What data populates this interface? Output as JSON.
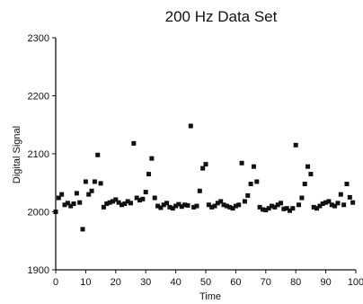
{
  "chart_data": {
    "type": "scatter",
    "title": "200 Hz Data Set",
    "xlabel": "Time",
    "ylabel": "Digital Signal",
    "xlim": [
      0,
      100
    ],
    "ylim": [
      1900,
      2300
    ],
    "xticks": [
      0,
      10,
      20,
      30,
      40,
      50,
      60,
      70,
      80,
      90,
      100
    ],
    "xtick_labels": [
      "0",
      "10",
      "20",
      "30",
      "40",
      "50",
      "60",
      "70",
      "80",
      "90",
      "100"
    ],
    "yticks": [
      1900,
      2000,
      2100,
      2200,
      2300
    ],
    "ytick_labels": [
      "1900",
      "2000",
      "2100",
      "2200",
      "2300"
    ],
    "grid": false,
    "legend": "none",
    "marker_color": "#111111",
    "x": [
      0,
      1,
      2,
      3,
      4,
      5,
      6,
      7,
      8,
      9,
      10,
      11,
      12,
      13,
      14,
      15,
      16,
      17,
      18,
      19,
      20,
      21,
      22,
      23,
      24,
      25,
      26,
      27,
      28,
      29,
      30,
      31,
      32,
      33,
      34,
      35,
      36,
      37,
      38,
      39,
      40,
      41,
      42,
      43,
      44,
      45,
      46,
      47,
      48,
      49,
      50,
      51,
      52,
      53,
      54,
      55,
      56,
      57,
      58,
      59,
      60,
      61,
      62,
      63,
      64,
      65,
      66,
      67,
      68,
      69,
      70,
      71,
      72,
      73,
      74,
      75,
      76,
      77,
      78,
      79,
      80,
      81,
      82,
      83,
      84,
      85,
      86,
      87,
      88,
      89,
      90,
      91,
      92,
      93,
      94,
      95,
      96,
      97,
      98,
      99
    ],
    "y": [
      2000,
      2024,
      2030,
      2012,
      2015,
      2010,
      2014,
      2032,
      2016,
      1970,
      2052,
      2030,
      2036,
      2052,
      2098,
      2049,
      2008,
      2014,
      2016,
      2018,
      2021,
      2016,
      2012,
      2014,
      2018,
      2015,
      2118,
      2024,
      2020,
      2022,
      2034,
      2065,
      2092,
      2024,
      2010,
      2007,
      2012,
      2015,
      2008,
      2006,
      2010,
      2013,
      2009,
      2012,
      2011,
      2148,
      2008,
      2010,
      2036,
      2075,
      2082,
      2012,
      2008,
      2010,
      2015,
      2018,
      2012,
      2010,
      2008,
      2006,
      2010,
      2012,
      2084,
      2018,
      2028,
      2048,
      2078,
      2052,
      2008,
      2004,
      2003,
      2006,
      2010,
      2008,
      2012,
      2015,
      2005,
      2006,
      2002,
      2006,
      2115,
      2012,
      2024,
      2048,
      2078,
      2065,
      2008,
      2006,
      2010,
      2014,
      2016,
      2018,
      2012,
      2010,
      2015,
      2030,
      2012,
      2048,
      2025,
      2016
    ]
  }
}
